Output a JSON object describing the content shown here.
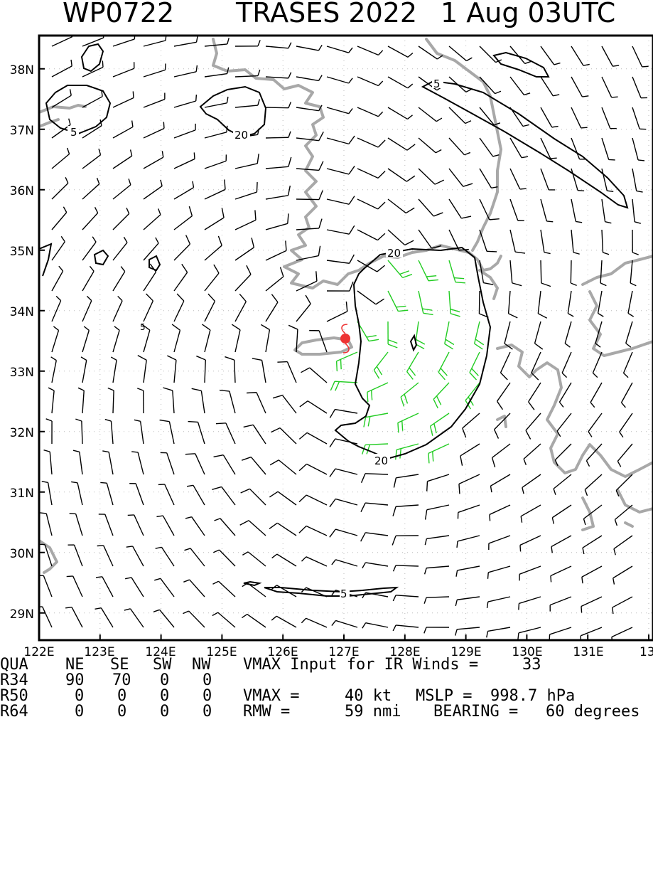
{
  "title": {
    "storm_id": "WP0722",
    "storm_name_year": "TRASES 2022",
    "datetime": "1 Aug 03UTC"
  },
  "map": {
    "lon_labels": [
      "122E",
      "123E",
      "124E",
      "125E",
      "126E",
      "127E",
      "128E",
      "129E",
      "130E",
      "131E",
      "13"
    ],
    "lat_labels": [
      "38N",
      "37N",
      "36N",
      "35N",
      "34N",
      "33N",
      "32N",
      "31N",
      "30N",
      "29N"
    ],
    "contour_labels": [
      "5",
      "5",
      "20",
      "5",
      "20",
      "20",
      "5"
    ],
    "center_lon": 127.0,
    "center_lat": 33.55,
    "colors": {
      "coast": "#a8a8a8",
      "barb_strong": "#22cc22",
      "barb": "#000000",
      "center": "#ee3333",
      "contour": "#000000"
    }
  },
  "footer": {
    "header": [
      "QUA",
      "NE",
      "SE",
      "SW",
      "NW"
    ],
    "rows": [
      [
        "R34",
        "90",
        "70",
        "0",
        "0"
      ],
      [
        "R50",
        "0",
        "0",
        "0",
        "0"
      ],
      [
        "R64",
        "0",
        "0",
        "0",
        "0"
      ]
    ],
    "vmax_input_label": "VMAX Input for IR Winds =",
    "vmax_input_value": "33",
    "vmax_label": "VMAX =",
    "vmax_value": "40 kt",
    "mslp_label": "MSLP =",
    "mslp_value": "998.7 hPa",
    "rmw_label": "RMW =",
    "rmw_value": "59 nmi",
    "bearing_label": "BEARING =",
    "bearing_value": "60 degrees"
  }
}
